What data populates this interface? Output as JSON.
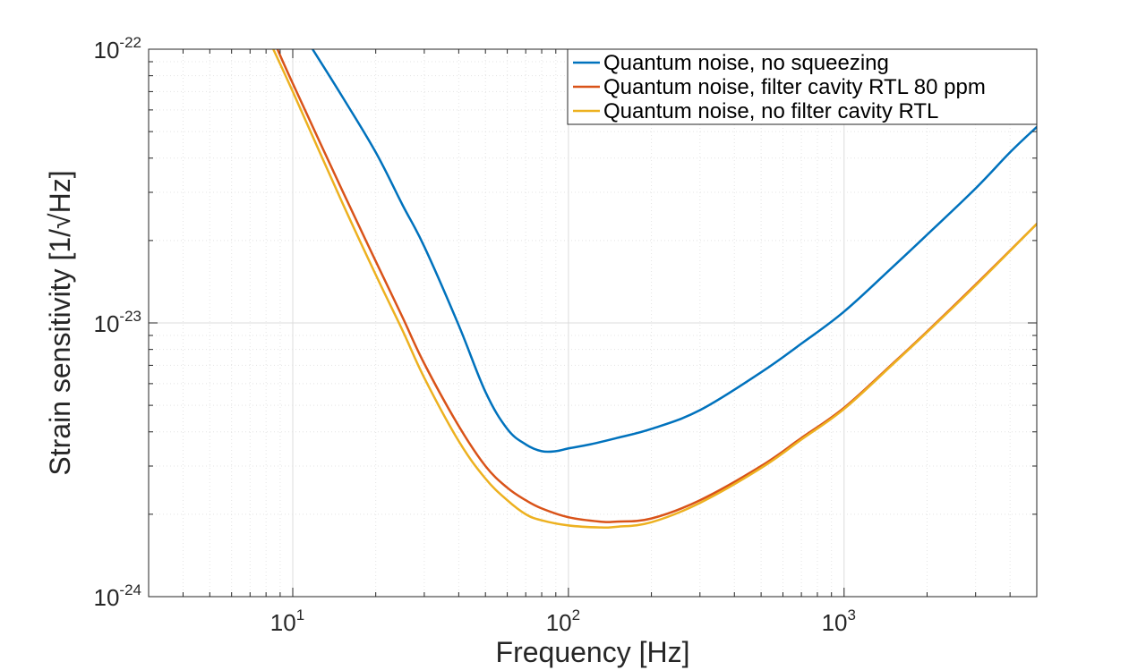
{
  "chart_data": {
    "type": "line",
    "xscale": "log",
    "yscale": "log",
    "xlim": [
      3,
      5000
    ],
    "ylim": [
      1e-24,
      1e-22
    ],
    "xlabel": "Frequency [Hz]",
    "ylabel": "Strain sensitivity [1/√Hz]",
    "grid": true,
    "legend_position": "top-right",
    "x_ticks": [
      {
        "value": 10,
        "base": "10",
        "exp": "1"
      },
      {
        "value": 100,
        "base": "10",
        "exp": "2"
      },
      {
        "value": 1000,
        "base": "10",
        "exp": "3"
      }
    ],
    "y_ticks": [
      {
        "value": 1e-24,
        "base": "10",
        "exp": "-24"
      },
      {
        "value": 1e-23,
        "base": "10",
        "exp": "-23"
      },
      {
        "value": 1e-22,
        "base": "10",
        "exp": "-22"
      }
    ],
    "series": [
      {
        "name": "Quantum noise, no squeezing",
        "color": "#0072BD",
        "x": [
          11.8,
          15,
          20,
          25,
          30,
          40,
          50,
          60,
          70,
          80,
          90,
          100,
          120,
          150,
          200,
          300,
          500,
          700,
          1000,
          1500,
          2000,
          3000,
          4000,
          5000
        ],
        "y": [
          1e-22,
          6.8e-23,
          4.2e-23,
          2.7e-23,
          1.9e-23,
          9.8e-24,
          5.6e-24,
          4.1e-24,
          3.6e-24,
          3.4e-24,
          3.4e-24,
          3.48e-24,
          3.6e-24,
          3.8e-24,
          4.1e-24,
          4.8e-24,
          6.6e-24,
          8.4e-24,
          1.1e-23,
          1.6e-23,
          2.1e-23,
          3.1e-23,
          4.2e-23,
          5.2e-23
        ]
      },
      {
        "name": "Quantum noise, filter cavity RTL 80 ppm",
        "color": "#D95319",
        "x": [
          8.8,
          10,
          15,
          20,
          25,
          30,
          40,
          50,
          60,
          70,
          80,
          100,
          130,
          150,
          200,
          300,
          500,
          700,
          1000,
          1500,
          2000,
          3000,
          5000
        ],
        "y": [
          1e-22,
          7.5e-23,
          3.1e-23,
          1.68e-23,
          1.05e-23,
          7.1e-24,
          4.2e-24,
          3e-24,
          2.5e-24,
          2.25e-24,
          2.1e-24,
          1.95e-24,
          1.88e-24,
          1.88e-24,
          1.93e-24,
          2.25e-24,
          3e-24,
          3.8e-24,
          4.9e-24,
          7.1e-24,
          9.3e-24,
          1.38e-23,
          2.3e-23
        ]
      },
      {
        "name": "Quantum noise, no filter cavity RTL",
        "color": "#EDB120",
        "x": [
          8.5,
          10,
          15,
          20,
          25,
          30,
          40,
          50,
          60,
          70,
          80,
          100,
          130,
          150,
          200,
          300,
          500,
          700,
          1000,
          1500,
          2000,
          3000,
          5000
        ],
        "y": [
          1e-22,
          7e-23,
          2.8e-23,
          1.5e-23,
          9.4e-24,
          6.3e-24,
          3.7e-24,
          2.7e-24,
          2.25e-24,
          2e-24,
          1.9e-24,
          1.82e-24,
          1.79e-24,
          1.8e-24,
          1.87e-24,
          2.2e-24,
          2.95e-24,
          3.75e-24,
          4.85e-24,
          7.05e-24,
          9.25e-24,
          1.37e-23,
          2.3e-23
        ]
      }
    ]
  }
}
